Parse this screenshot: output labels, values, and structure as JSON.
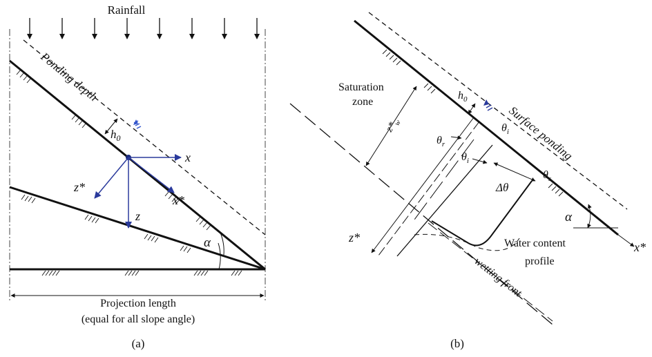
{
  "panel_a": {
    "caption": "(a)",
    "rainfall": "Rainfall",
    "ponding_depth": "Ponding depth",
    "h0": "h",
    "h0_sub": "0",
    "x": "x",
    "x_star": "x*",
    "z": "z",
    "z_star": "z*",
    "alpha": "α",
    "projection_length": "Projection length",
    "projection_note": "(equal for all slope angle)"
  },
  "panel_b": {
    "caption": "(b)",
    "saturation_zone_1": "Saturation",
    "saturation_zone_2": "zone",
    "z_w": "z*",
    "z_w_sub": "w",
    "h0": "h",
    "h0_sub": "0",
    "surface_ponding": "Surface ponding",
    "theta": "θ",
    "sub_r": "r",
    "sub_i": "i",
    "sub_s": "s",
    "delta_theta": "Δθ",
    "alpha": "α",
    "x_star": "x*",
    "z_star": "z*",
    "water_content_1": "Water content",
    "water_content_2": "profile",
    "wetting_front": "wetting front"
  },
  "colors": {
    "axis_blue": "#2a3a9c",
    "water_blue": "#3355cc"
  }
}
